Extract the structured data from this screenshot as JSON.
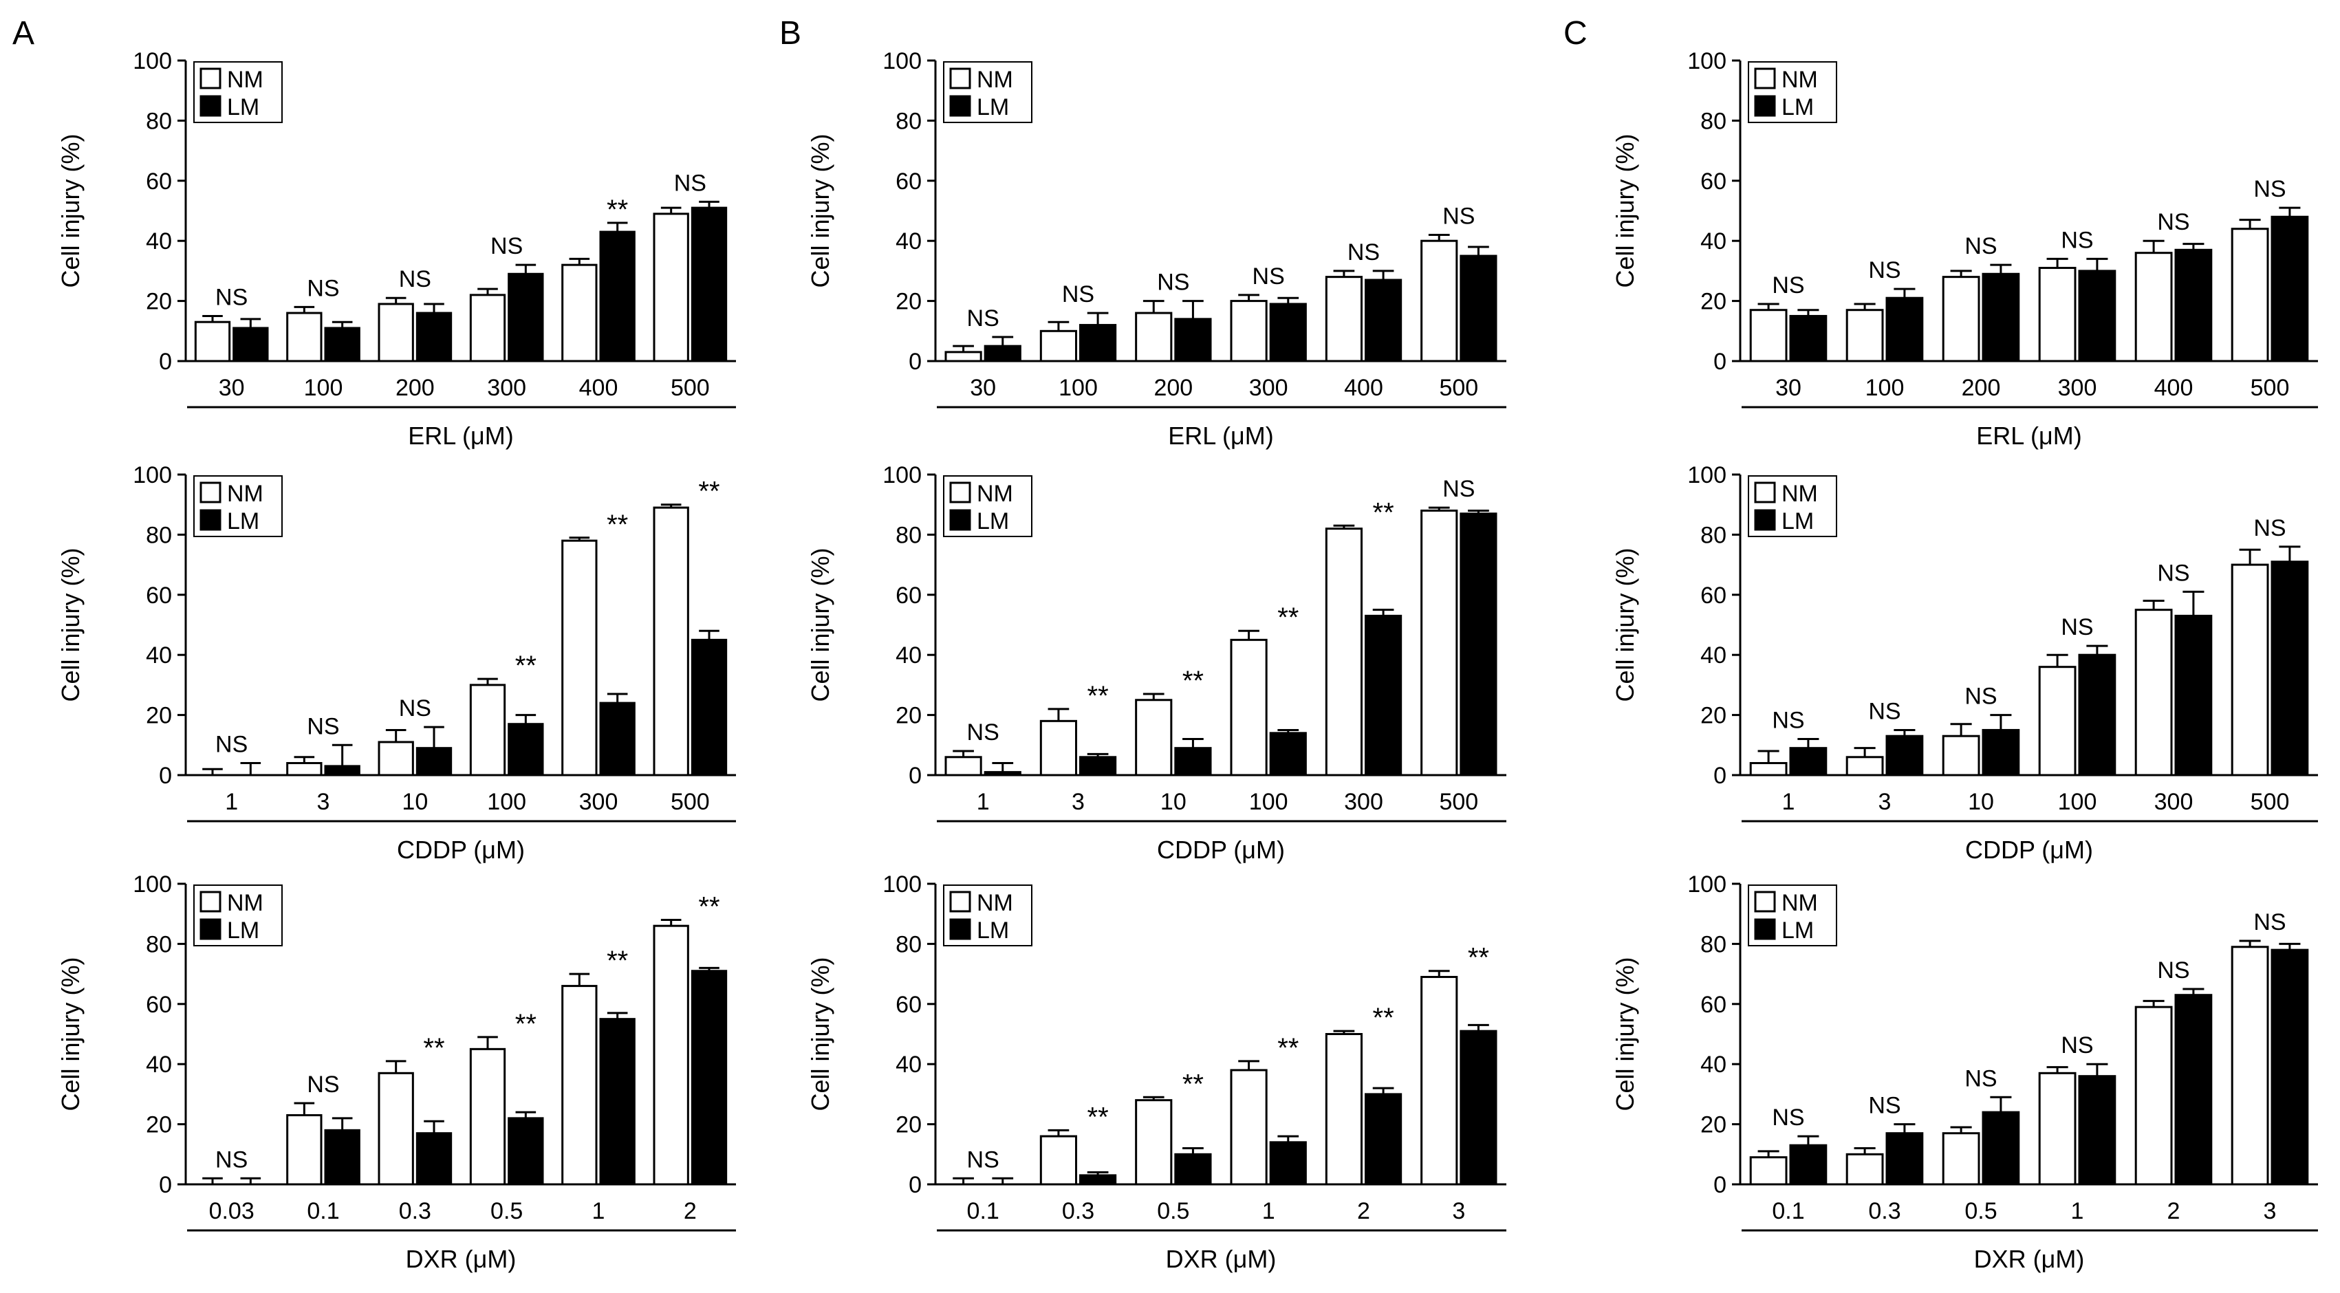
{
  "panel_labels": [
    "A",
    "B",
    "C"
  ],
  "legend": {
    "nm_label": "NM",
    "lm_label": "LM"
  },
  "ylabel": "Cell injury (%)",
  "yticks": [
    "0",
    "20",
    "40",
    "60",
    "80",
    "100"
  ],
  "chart_data": [
    {
      "type": "bar",
      "panel": "A",
      "drug_label": "ERL (μM)",
      "xlabel": "ERL (μM)",
      "ylabel": "Cell injury (%)",
      "ylim": [
        0,
        100
      ],
      "categories": [
        "30",
        "100",
        "200",
        "300",
        "400",
        "500"
      ],
      "series": [
        {
          "name": "NM",
          "values": [
            13,
            16,
            19,
            22,
            32,
            49
          ],
          "errors": [
            2,
            2,
            2,
            2,
            2,
            2
          ]
        },
        {
          "name": "LM",
          "values": [
            11,
            11,
            16,
            29,
            43,
            51
          ],
          "errors": [
            3,
            2,
            3,
            3,
            3,
            2
          ]
        }
      ],
      "annotations": [
        "NS",
        "NS",
        "NS",
        "NS",
        "**",
        "NS"
      ]
    },
    {
      "type": "bar",
      "panel": "B",
      "drug_label": "ERL (μM)",
      "xlabel": "ERL (μM)",
      "ylabel": "Cell injury (%)",
      "ylim": [
        0,
        100
      ],
      "categories": [
        "30",
        "100",
        "200",
        "300",
        "400",
        "500"
      ],
      "series": [
        {
          "name": "NM",
          "values": [
            3,
            10,
            16,
            20,
            28,
            40
          ],
          "errors": [
            2,
            3,
            4,
            2,
            2,
            2
          ]
        },
        {
          "name": "LM",
          "values": [
            5,
            12,
            14,
            19,
            27,
            35
          ],
          "errors": [
            3,
            4,
            6,
            2,
            3,
            3
          ]
        }
      ],
      "annotations": [
        "NS",
        "NS",
        "NS",
        "NS",
        "NS",
        "NS"
      ]
    },
    {
      "type": "bar",
      "panel": "C",
      "drug_label": "ERL (μM)",
      "xlabel": "ERL (μM)",
      "ylabel": "Cell injury (%)",
      "ylim": [
        0,
        100
      ],
      "categories": [
        "30",
        "100",
        "200",
        "300",
        "400",
        "500"
      ],
      "series": [
        {
          "name": "NM",
          "values": [
            17,
            17,
            28,
            31,
            36,
            44
          ],
          "errors": [
            2,
            2,
            2,
            3,
            4,
            3
          ]
        },
        {
          "name": "LM",
          "values": [
            15,
            21,
            29,
            30,
            37,
            48
          ],
          "errors": [
            2,
            3,
            3,
            4,
            2,
            3
          ]
        }
      ],
      "annotations": [
        "NS",
        "NS",
        "NS",
        "NS",
        "NS",
        "NS"
      ]
    },
    {
      "type": "bar",
      "panel": "A",
      "drug_label": "CDDP (μM)",
      "xlabel": "CDDP (μM)",
      "ylabel": "Cell injury (%)",
      "ylim": [
        0,
        100
      ],
      "categories": [
        "1",
        "3",
        "10",
        "100",
        "300",
        "500"
      ],
      "series": [
        {
          "name": "NM",
          "values": [
            0,
            4,
            11,
            30,
            78,
            89
          ],
          "errors": [
            2,
            2,
            4,
            2,
            1,
            1
          ]
        },
        {
          "name": "LM",
          "values": [
            0,
            3,
            9,
            17,
            24,
            45
          ],
          "errors": [
            4,
            7,
            7,
            3,
            3,
            3
          ]
        }
      ],
      "annotations": [
        "NS",
        "NS",
        "NS",
        "**",
        "**",
        "**"
      ]
    },
    {
      "type": "bar",
      "panel": "B",
      "drug_label": "CDDP (μM)",
      "xlabel": "CDDP (μM)",
      "ylabel": "Cell injury (%)",
      "ylim": [
        0,
        100
      ],
      "categories": [
        "1",
        "3",
        "10",
        "100",
        "300",
        "500"
      ],
      "series": [
        {
          "name": "NM",
          "values": [
            6,
            18,
            25,
            45,
            82,
            88
          ],
          "errors": [
            2,
            4,
            2,
            3,
            1,
            1
          ]
        },
        {
          "name": "LM",
          "values": [
            1,
            6,
            9,
            14,
            53,
            87
          ],
          "errors": [
            3,
            1,
            3,
            1,
            2,
            1
          ]
        }
      ],
      "annotations": [
        "NS",
        "**",
        "**",
        "**",
        "**",
        "NS"
      ]
    },
    {
      "type": "bar",
      "panel": "C",
      "drug_label": "CDDP (μM)",
      "xlabel": "CDDP (μM)",
      "ylabel": "Cell injury (%)",
      "ylim": [
        0,
        100
      ],
      "categories": [
        "1",
        "3",
        "10",
        "100",
        "300",
        "500"
      ],
      "series": [
        {
          "name": "NM",
          "values": [
            4,
            6,
            13,
            36,
            55,
            70
          ],
          "errors": [
            4,
            3,
            4,
            4,
            3,
            5
          ]
        },
        {
          "name": "LM",
          "values": [
            9,
            13,
            15,
            40,
            53,
            71
          ],
          "errors": [
            3,
            2,
            5,
            3,
            8,
            5
          ]
        }
      ],
      "annotations": [
        "NS",
        "NS",
        "NS",
        "NS",
        "NS",
        "NS"
      ]
    },
    {
      "type": "bar",
      "panel": "A",
      "drug_label": "DXR (μM)",
      "xlabel": "DXR (μM)",
      "ylabel": "Cell injury (%)",
      "ylim": [
        0,
        100
      ],
      "categories": [
        "0.03",
        "0.1",
        "0.3",
        "0.5",
        "1",
        "2"
      ],
      "series": [
        {
          "name": "NM",
          "values": [
            0,
            23,
            37,
            45,
            66,
            86
          ],
          "errors": [
            2,
            4,
            4,
            4,
            4,
            2
          ]
        },
        {
          "name": "LM",
          "values": [
            0,
            18,
            17,
            22,
            55,
            71
          ],
          "errors": [
            2,
            4,
            4,
            2,
            2,
            1
          ]
        }
      ],
      "annotations": [
        "NS",
        "NS",
        "**",
        "**",
        "**",
        "**"
      ]
    },
    {
      "type": "bar",
      "panel": "B",
      "drug_label": "DXR (μM)",
      "xlabel": "DXR (μM)",
      "ylabel": "Cell injury (%)",
      "ylim": [
        0,
        100
      ],
      "categories": [
        "0.1",
        "0.3",
        "0.5",
        "1",
        "2",
        "3"
      ],
      "series": [
        {
          "name": "NM",
          "values": [
            0,
            16,
            28,
            38,
            50,
            69
          ],
          "errors": [
            2,
            2,
            1,
            3,
            1,
            2
          ]
        },
        {
          "name": "LM",
          "values": [
            0,
            3,
            10,
            14,
            30,
            51
          ],
          "errors": [
            2,
            1,
            2,
            2,
            2,
            2
          ]
        }
      ],
      "annotations": [
        "NS",
        "**",
        "**",
        "**",
        "**",
        "**"
      ]
    },
    {
      "type": "bar",
      "panel": "C",
      "drug_label": "DXR (μM)",
      "xlabel": "DXR (μM)",
      "ylabel": "Cell injury (%)",
      "ylim": [
        0,
        100
      ],
      "categories": [
        "0.1",
        "0.3",
        "0.5",
        "1",
        "2",
        "3"
      ],
      "series": [
        {
          "name": "NM",
          "values": [
            9,
            10,
            17,
            37,
            59,
            79
          ],
          "errors": [
            2,
            2,
            2,
            2,
            2,
            2
          ]
        },
        {
          "name": "LM",
          "values": [
            13,
            17,
            24,
            36,
            63,
            78
          ],
          "errors": [
            3,
            3,
            5,
            4,
            2,
            2
          ]
        }
      ],
      "annotations": [
        "NS",
        "NS",
        "NS",
        "NS",
        "NS",
        "NS"
      ]
    }
  ]
}
